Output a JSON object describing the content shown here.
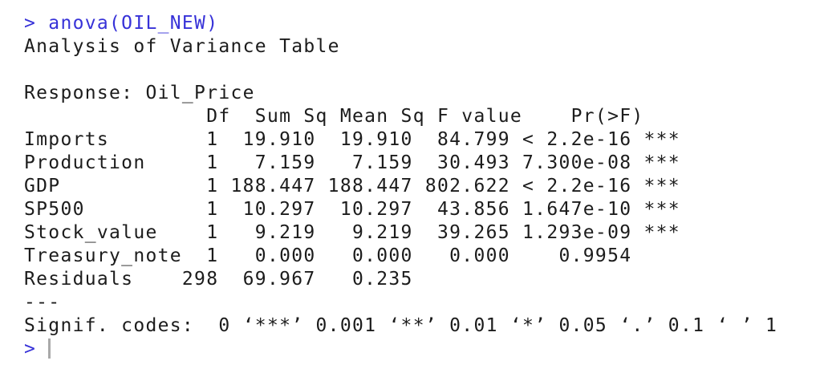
{
  "colors": {
    "background": "#ffffff",
    "input_text": "#3732d8",
    "output_text": "#1c1c1c",
    "cursor": "#a9a9a9"
  },
  "console": {
    "prompt": ">",
    "command": "anova(OIL_NEW)",
    "input_line": "> anova(OIL_NEW)",
    "output_lines": [
      "Analysis of Variance Table",
      "",
      "Response: Oil_Price",
      "               Df  Sum Sq Mean Sq F value    Pr(>F)",
      "Imports        1  19.910  19.910  84.799 < 2.2e-16 ***",
      "Production     1   7.159   7.159  30.493 7.300e-08 ***",
      "GDP            1 188.447 188.447 802.622 < 2.2e-16 ***",
      "SP500          1  10.297  10.297  43.856 1.647e-10 ***",
      "Stock_value    1   9.219   9.219  39.265 1.293e-09 ***",
      "Treasury_note  1   0.000   0.000   0.000    0.9954",
      "Residuals    298  69.967   0.235",
      "---",
      "Signif. codes:  0 ‘***’ 0.001 ‘**’ 0.01 ‘*’ 0.05 ‘.’ 0.1 ‘ ’ 1"
    ],
    "anova_table": {
      "title": "Analysis of Variance Table",
      "response": "Oil_Price",
      "columns": [
        "Df",
        "Sum Sq",
        "Mean Sq",
        "F value",
        "Pr(>F)"
      ],
      "rows": [
        {
          "term": "Imports",
          "df": "1",
          "sum_sq": "19.910",
          "mean_sq": "19.910",
          "f_value": "84.799",
          "pr_f": "< 2.2e-16",
          "signif": "***"
        },
        {
          "term": "Production",
          "df": "1",
          "sum_sq": "7.159",
          "mean_sq": "7.159",
          "f_value": "30.493",
          "pr_f": "7.300e-08",
          "signif": "***"
        },
        {
          "term": "GDP",
          "df": "1",
          "sum_sq": "188.447",
          "mean_sq": "188.447",
          "f_value": "802.622",
          "pr_f": "< 2.2e-16",
          "signif": "***"
        },
        {
          "term": "SP500",
          "df": "1",
          "sum_sq": "10.297",
          "mean_sq": "10.297",
          "f_value": "43.856",
          "pr_f": "1.647e-10",
          "signif": "***"
        },
        {
          "term": "Stock_value",
          "df": "1",
          "sum_sq": "9.219",
          "mean_sq": "9.219",
          "f_value": "39.265",
          "pr_f": "1.293e-09",
          "signif": "***"
        },
        {
          "term": "Treasury_note",
          "df": "1",
          "sum_sq": "0.000",
          "mean_sq": "0.000",
          "f_value": "0.000",
          "pr_f": "0.9954",
          "signif": ""
        },
        {
          "term": "Residuals",
          "df": "298",
          "sum_sq": "69.967",
          "mean_sq": "0.235",
          "f_value": "",
          "pr_f": "",
          "signif": ""
        }
      ],
      "signif_codes": "0 ‘***’ 0.001 ‘**’ 0.01 ‘*’ 0.05 ‘.’ 0.1 ‘ ’ 1"
    }
  }
}
